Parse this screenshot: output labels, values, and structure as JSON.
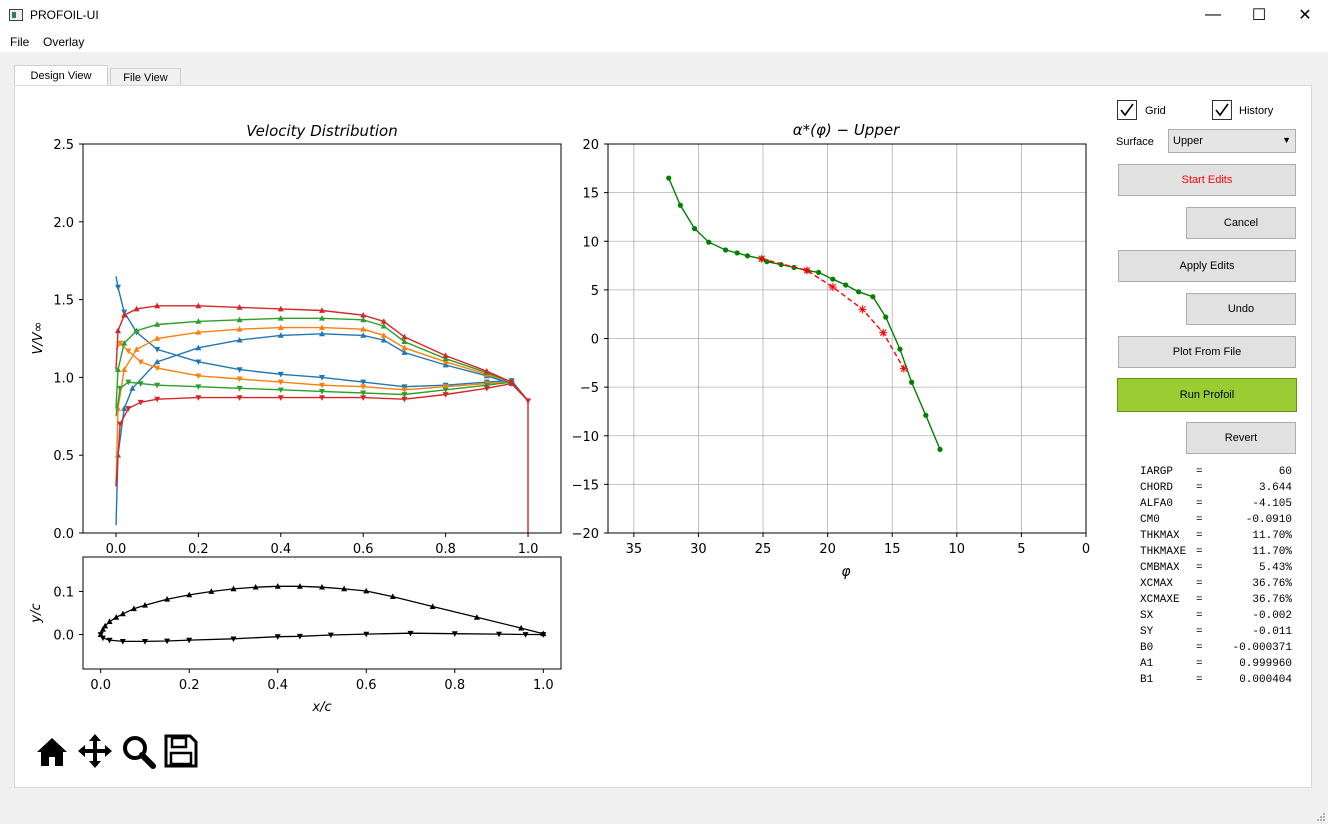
{
  "window": {
    "title": "PROFOIL-UI",
    "minimize": "—",
    "maximize": "☐",
    "close": "✕"
  },
  "menu": {
    "file": "File",
    "overlay": "Overlay"
  },
  "tabs": [
    {
      "label": "Design View"
    },
    {
      "label": "File View"
    }
  ],
  "controls": {
    "grid_label": "Grid",
    "grid_checked": true,
    "history_label": "History",
    "history_checked": true,
    "surface_label": "Surface",
    "surface_value": "Upper",
    "buttons": {
      "start_edits": "Start Edits",
      "cancel": "Cancel",
      "apply_edits": "Apply Edits",
      "undo": "Undo",
      "plot_from_file": "Plot From File",
      "run_profoil": "Run Profoil",
      "revert": "Revert"
    },
    "colors": {
      "start_edits_text": "#ff0000",
      "run_profoil_bg": "#9acd32"
    }
  },
  "parameters": [
    {
      "name": "IARGP",
      "eq": "=",
      "value": "60"
    },
    {
      "name": "CHORD",
      "eq": "=",
      "value": "3.644"
    },
    {
      "name": "ALFA0",
      "eq": "=",
      "value": "-4.105"
    },
    {
      "name": "CM0",
      "eq": "=",
      "value": "-0.0910"
    },
    {
      "name": "THKMAX",
      "eq": "=",
      "value": "11.70%"
    },
    {
      "name": "THKMAXE",
      "eq": "=",
      "value": "11.70%"
    },
    {
      "name": "CMBMAX",
      "eq": "=",
      "value": "5.43%"
    },
    {
      "name": "XCMAX",
      "eq": "=",
      "value": "36.76%"
    },
    {
      "name": "XCMAXE",
      "eq": "=",
      "value": "36.76%"
    },
    {
      "name": "SX",
      "eq": "=",
      "value": "-0.002"
    },
    {
      "name": "SY",
      "eq": "=",
      "value": "-0.011"
    },
    {
      "name": "B0",
      "eq": "=",
      "value": "-0.000371"
    },
    {
      "name": "A1",
      "eq": "=",
      "value": "0.999960"
    },
    {
      "name": "B1",
      "eq": "=",
      "value": "0.000404"
    }
  ],
  "toolbar": {
    "icons": [
      "home-icon",
      "pan-icon",
      "zoom-icon",
      "save-icon"
    ]
  },
  "chart_data": [
    {
      "type": "line",
      "title": "Velocity Distribution",
      "xlabel": "",
      "ylabel": "V/V∞",
      "xlim": [
        -0.08,
        1.08
      ],
      "ylim": [
        0,
        2.5
      ],
      "xticks": [
        "0.0",
        "0.2",
        "0.4",
        "0.6",
        "0.8",
        "1.0"
      ],
      "yticks": [
        "0.0",
        "0.5",
        "1.0",
        "1.5",
        "2.0",
        "2.5"
      ],
      "series": [
        {
          "color": "#1f77b4",
          "upper": [
            [
              0.0,
              1.65
            ],
            [
              0.005,
              1.58
            ],
            [
              0.02,
              1.42
            ],
            [
              0.05,
              1.29
            ],
            [
              0.1,
              1.18
            ],
            [
              0.2,
              1.1
            ],
            [
              0.3,
              1.05
            ],
            [
              0.4,
              1.02
            ],
            [
              0.5,
              1.0
            ],
            [
              0.6,
              0.97
            ],
            [
              0.7,
              0.94
            ],
            [
              0.8,
              0.95
            ],
            [
              0.9,
              0.97
            ],
            [
              0.96,
              0.98
            ],
            [
              1.0,
              0.85
            ]
          ],
          "lower": [
            [
              0.0,
              0.05
            ],
            [
              0.005,
              0.5
            ],
            [
              0.02,
              0.8
            ],
            [
              0.04,
              0.93
            ],
            [
              0.1,
              1.1
            ],
            [
              0.2,
              1.19
            ],
            [
              0.3,
              1.24
            ],
            [
              0.4,
              1.27
            ],
            [
              0.5,
              1.28
            ],
            [
              0.6,
              1.27
            ],
            [
              0.65,
              1.24
            ],
            [
              0.7,
              1.16
            ],
            [
              0.8,
              1.08
            ],
            [
              0.9,
              1.01
            ],
            [
              0.96,
              0.96
            ],
            [
              1.0,
              0.85
            ]
          ]
        },
        {
          "color": "#ff7f0e",
          "upper": [
            [
              0.0,
              1.18
            ],
            [
              0.01,
              1.22
            ],
            [
              0.03,
              1.17
            ],
            [
              0.06,
              1.1
            ],
            [
              0.1,
              1.06
            ],
            [
              0.2,
              1.01
            ],
            [
              0.3,
              0.99
            ],
            [
              0.4,
              0.97
            ],
            [
              0.5,
              0.95
            ],
            [
              0.6,
              0.94
            ],
            [
              0.7,
              0.92
            ],
            [
              0.8,
              0.94
            ],
            [
              0.9,
              0.96
            ],
            [
              0.96,
              0.97
            ],
            [
              1.0,
              0.85
            ]
          ],
          "lower": [
            [
              0.0,
              0.3
            ],
            [
              0.005,
              0.8
            ],
            [
              0.02,
              1.05
            ],
            [
              0.05,
              1.18
            ],
            [
              0.1,
              1.25
            ],
            [
              0.2,
              1.29
            ],
            [
              0.3,
              1.31
            ],
            [
              0.4,
              1.32
            ],
            [
              0.5,
              1.32
            ],
            [
              0.6,
              1.31
            ],
            [
              0.65,
              1.27
            ],
            [
              0.7,
              1.19
            ],
            [
              0.8,
              1.1
            ],
            [
              0.9,
              1.02
            ],
            [
              0.96,
              0.97
            ],
            [
              1.0,
              0.85
            ]
          ]
        },
        {
          "color": "#2ca02c",
          "upper": [
            [
              0.0,
              0.75
            ],
            [
              0.01,
              0.93
            ],
            [
              0.03,
              0.97
            ],
            [
              0.06,
              0.96
            ],
            [
              0.1,
              0.95
            ],
            [
              0.2,
              0.94
            ],
            [
              0.3,
              0.93
            ],
            [
              0.4,
              0.92
            ],
            [
              0.5,
              0.91
            ],
            [
              0.6,
              0.9
            ],
            [
              0.7,
              0.89
            ],
            [
              0.8,
              0.92
            ],
            [
              0.9,
              0.95
            ],
            [
              0.96,
              0.97
            ],
            [
              1.0,
              0.85
            ]
          ],
          "lower": [
            [
              0.0,
              0.8
            ],
            [
              0.005,
              1.05
            ],
            [
              0.02,
              1.22
            ],
            [
              0.05,
              1.3
            ],
            [
              0.1,
              1.34
            ],
            [
              0.2,
              1.36
            ],
            [
              0.3,
              1.37
            ],
            [
              0.4,
              1.38
            ],
            [
              0.5,
              1.38
            ],
            [
              0.6,
              1.37
            ],
            [
              0.65,
              1.33
            ],
            [
              0.7,
              1.23
            ],
            [
              0.8,
              1.12
            ],
            [
              0.9,
              1.03
            ],
            [
              0.96,
              0.97
            ],
            [
              1.0,
              0.85
            ]
          ]
        },
        {
          "color": "#d62728",
          "upper": [
            [
              0.0,
              0.3
            ],
            [
              0.01,
              0.7
            ],
            [
              0.03,
              0.8
            ],
            [
              0.06,
              0.84
            ],
            [
              0.1,
              0.86
            ],
            [
              0.2,
              0.87
            ],
            [
              0.3,
              0.87
            ],
            [
              0.4,
              0.87
            ],
            [
              0.5,
              0.87
            ],
            [
              0.6,
              0.87
            ],
            [
              0.7,
              0.86
            ],
            [
              0.8,
              0.89
            ],
            [
              0.9,
              0.93
            ],
            [
              0.96,
              0.96
            ],
            [
              1.0,
              0.85
            ],
            [
              1.0,
              0.0
            ]
          ],
          "lower": [
            [
              0.0,
              1.05
            ],
            [
              0.005,
              1.3
            ],
            [
              0.02,
              1.4
            ],
            [
              0.05,
              1.44
            ],
            [
              0.1,
              1.46
            ],
            [
              0.2,
              1.46
            ],
            [
              0.3,
              1.45
            ],
            [
              0.4,
              1.44
            ],
            [
              0.5,
              1.43
            ],
            [
              0.6,
              1.4
            ],
            [
              0.65,
              1.36
            ],
            [
              0.7,
              1.26
            ],
            [
              0.8,
              1.14
            ],
            [
              0.9,
              1.04
            ],
            [
              0.96,
              0.97
            ],
            [
              1.0,
              0.85
            ]
          ]
        }
      ]
    },
    {
      "type": "line",
      "title": "α*(φ) − Upper",
      "xlabel": "φ",
      "ylabel": "",
      "xlim": [
        37,
        0
      ],
      "ylim": [
        -20,
        20
      ],
      "xticks": [
        "35",
        "30",
        "25",
        "20",
        "15",
        "10",
        "5",
        "0"
      ],
      "yticks": [
        "−20",
        "−15",
        "−10",
        "−5",
        "0",
        "5",
        "10",
        "15",
        "20"
      ],
      "series": [
        {
          "style": "solid",
          "marker": "dot",
          "color": "#008000",
          "x": [
            32.3,
            31.4,
            30.3,
            29.2,
            27.9,
            27.0,
            26.2,
            25.1,
            24.7,
            23.6,
            22.6,
            21.6,
            20.7,
            19.6,
            18.6,
            17.6,
            16.5,
            15.5,
            14.4,
            13.5,
            12.4,
            11.3
          ],
          "y": [
            16.5,
            13.7,
            11.3,
            9.9,
            9.1,
            8.8,
            8.5,
            8.2,
            7.9,
            7.6,
            7.3,
            7.0,
            6.8,
            6.1,
            5.5,
            4.8,
            4.3,
            2.2,
            -1.1,
            -4.5,
            -7.9,
            -11.4
          ]
        },
        {
          "style": "dashed",
          "marker": "plus",
          "color": "#ff0000",
          "x": [
            25.1,
            21.6,
            19.6,
            17.3,
            15.7,
            14.1
          ],
          "y": [
            8.2,
            7.0,
            5.3,
            3.0,
            0.6,
            -3.1
          ]
        }
      ]
    },
    {
      "type": "line",
      "title": "",
      "xlabel": "x/c",
      "ylabel": "y/c",
      "xlim": [
        -0.04,
        1.04
      ],
      "ylim": [
        -0.08,
        0.18
      ],
      "xticks": [
        "0.0",
        "0.2",
        "0.4",
        "0.6",
        "0.8",
        "1.0"
      ],
      "yticks": [
        "0.0",
        "0.1"
      ],
      "series": [
        {
          "color": "#000000",
          "name": "",
          "upper": [
            [
              0.0,
              0.0
            ],
            [
              0.005,
              0.012
            ],
            [
              0.01,
              0.02
            ],
            [
              0.02,
              0.03
            ],
            [
              0.035,
              0.04
            ],
            [
              0.05,
              0.048
            ],
            [
              0.075,
              0.06
            ],
            [
              0.1,
              0.068
            ],
            [
              0.15,
              0.082
            ],
            [
              0.2,
              0.092
            ],
            [
              0.25,
              0.1
            ],
            [
              0.3,
              0.106
            ],
            [
              0.35,
              0.11
            ],
            [
              0.4,
              0.112
            ],
            [
              0.45,
              0.112
            ],
            [
              0.5,
              0.11
            ],
            [
              0.55,
              0.106
            ],
            [
              0.6,
              0.101
            ],
            [
              0.66,
              0.088
            ],
            [
              0.75,
              0.065
            ],
            [
              0.85,
              0.04
            ],
            [
              0.95,
              0.015
            ],
            [
              1.0,
              0.002
            ]
          ],
          "lower": [
            [
              0.0,
              0.0
            ],
            [
              0.005,
              -0.008
            ],
            [
              0.02,
              -0.013
            ],
            [
              0.05,
              -0.016
            ],
            [
              0.1,
              -0.016
            ],
            [
              0.15,
              -0.015
            ],
            [
              0.2,
              -0.013
            ],
            [
              0.3,
              -0.01
            ],
            [
              0.4,
              -0.005
            ],
            [
              0.45,
              -0.004
            ],
            [
              0.52,
              -0.001
            ],
            [
              0.6,
              0.001
            ],
            [
              0.7,
              0.003
            ],
            [
              0.8,
              0.002
            ],
            [
              0.9,
              0.001
            ],
            [
              0.96,
              0.0
            ],
            [
              1.0,
              0.0
            ]
          ]
        }
      ]
    }
  ]
}
